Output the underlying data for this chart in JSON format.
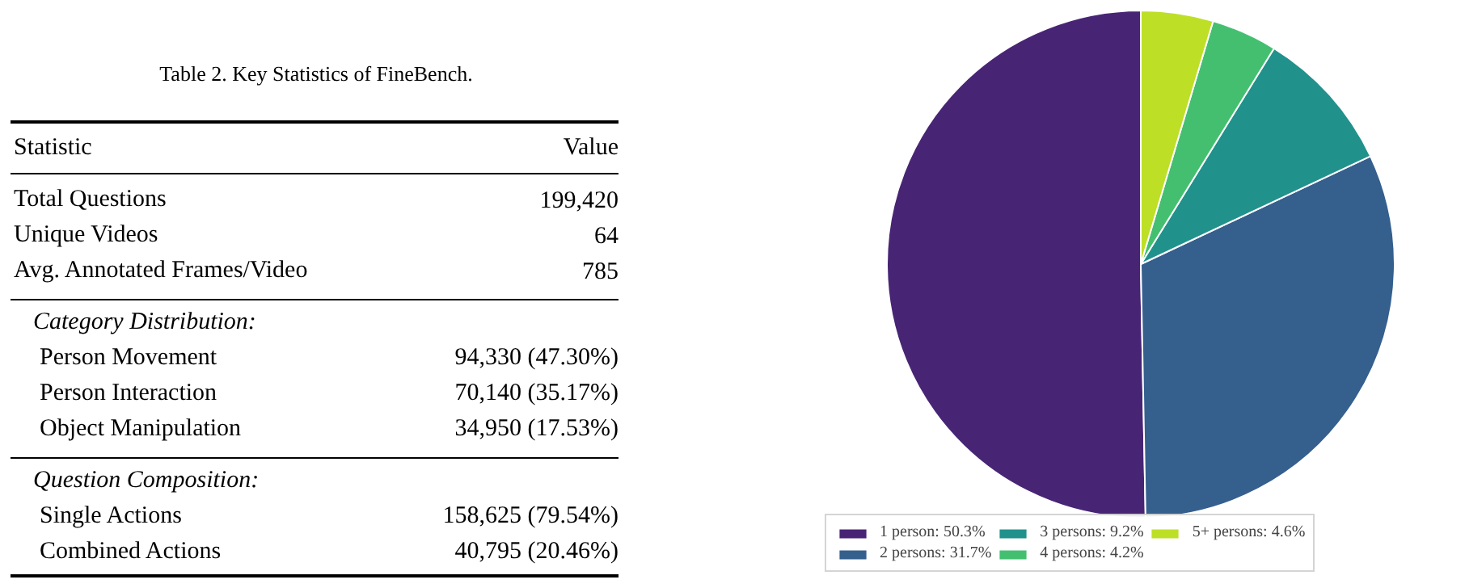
{
  "chart_data": [
    {
      "type": "other",
      "title": "Table 2. Key Statistics of FineBench.",
      "categories": [
        "Statistic",
        "Total Questions",
        "Unique Videos",
        "Avg. Annotated Frames/Video",
        null,
        "Person Movement",
        "Person Interaction",
        "Object Manipulation",
        null,
        "Single Actions",
        "Combined Actions"
      ],
      "annotations": [
        "Category Distribution:",
        "Question Composition:"
      ],
      "value_labels": [
        "Value",
        "199,420",
        "64",
        "785",
        null,
        "94,330 (47.30%)",
        "70,140 (35.17%)",
        "34,950 (17.53%)",
        null,
        "158,625 (79.54%)",
        "40,795 (20.46%)"
      ]
    },
    {
      "type": "pie",
      "categories": [
        "1 person: 50.3%",
        "2 persons: 31.7%",
        "3 persons: 9.2%",
        "4 persons: 4.2%",
        "5+ persons: 4.6%"
      ],
      "values": [
        50.3,
        31.7,
        9.2,
        4.2,
        4.6
      ],
      "colors": [
        "#482475",
        "#355f8d",
        "#21918c",
        "#44bf70",
        "#bddf26"
      ],
      "legend": "bottom"
    }
  ]
}
